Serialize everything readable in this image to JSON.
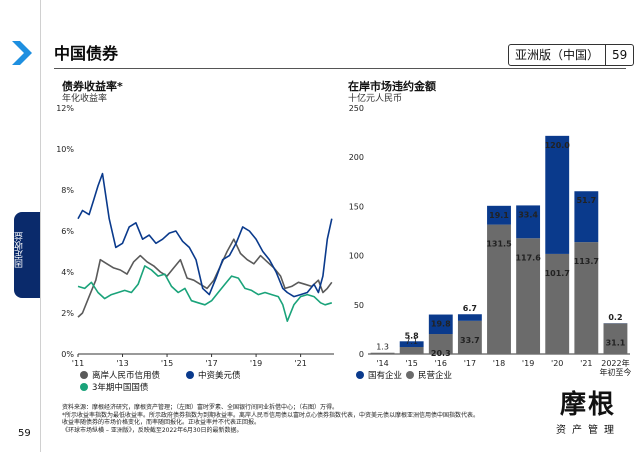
{
  "page": {
    "title": "中国债券",
    "region": "亚洲版（中国）",
    "page_number": "59",
    "side_tab": "固定收益"
  },
  "brand": {
    "name": "摩根",
    "sub": "资产管理"
  },
  "left": {
    "title": "债券收益率*",
    "subtitle": "年化收益率",
    "legend": [
      {
        "label": "离岸人民币信用债",
        "color": "#5a5a5a"
      },
      {
        "label": "中资美元债",
        "color": "#0a3a8c"
      },
      {
        "label": "3年期中国国债",
        "color": "#1aa37a"
      }
    ]
  },
  "right": {
    "title": "在岸市场违约金额",
    "subtitle": "十亿元人民币",
    "legend": [
      {
        "label": "国有企业",
        "color": "#0a3a8c"
      },
      {
        "label": "民营企业",
        "color": "#6b6b6b"
      }
    ]
  },
  "chart_data": [
    {
      "type": "line",
      "title": "债券收益率*",
      "ylabel": "年化收益率",
      "ylim": [
        0,
        12
      ],
      "yticks": [
        "0%",
        "2%",
        "4%",
        "6%",
        "8%",
        "10%",
        "12%"
      ],
      "xlim": [
        2011,
        2022.5
      ],
      "xticks": [
        {
          "x": 2011,
          "label": "'11"
        },
        {
          "x": 2013,
          "label": "'13"
        },
        {
          "x": 2015,
          "label": "'15"
        },
        {
          "x": 2017,
          "label": "'17"
        },
        {
          "x": 2019,
          "label": "'19"
        },
        {
          "x": 2021,
          "label": "'21"
        }
      ],
      "series": [
        {
          "name": "离岸人民币信用债",
          "x": [
            2011.0,
            2011.2,
            2011.5,
            2011.8,
            2012.0,
            2012.3,
            2012.6,
            2012.9,
            2013.2,
            2013.5,
            2013.8,
            2014.1,
            2014.4,
            2014.7,
            2015.0,
            2015.3,
            2015.6,
            2015.9,
            2016.2,
            2016.5,
            2016.8,
            2017.1,
            2017.4,
            2017.7,
            2018.0,
            2018.3,
            2018.6,
            2018.9,
            2019.2,
            2019.5,
            2019.8,
            2020.1,
            2020.3,
            2020.6,
            2020.9,
            2021.2,
            2021.5,
            2021.8,
            2022.0,
            2022.2,
            2022.4
          ],
          "values": [
            1.8,
            2.0,
            2.8,
            3.6,
            4.6,
            4.4,
            4.2,
            4.1,
            3.9,
            4.5,
            4.8,
            4.5,
            4.3,
            4.0,
            3.8,
            4.2,
            4.6,
            3.7,
            3.6,
            3.4,
            3.2,
            3.6,
            4.3,
            5.0,
            5.6,
            4.9,
            4.6,
            4.4,
            4.8,
            4.5,
            4.2,
            3.8,
            3.2,
            3.3,
            3.5,
            3.4,
            3.3,
            3.6,
            3.0,
            3.2,
            3.5
          ]
        },
        {
          "name": "中资美元债",
          "x": [
            2011.0,
            2011.2,
            2011.5,
            2011.7,
            2011.9,
            2012.1,
            2012.4,
            2012.7,
            2013.0,
            2013.3,
            2013.6,
            2013.9,
            2014.2,
            2014.5,
            2014.8,
            2015.1,
            2015.4,
            2015.7,
            2016.0,
            2016.3,
            2016.6,
            2016.9,
            2017.2,
            2017.5,
            2017.8,
            2018.1,
            2018.4,
            2018.7,
            2019.0,
            2019.3,
            2019.6,
            2019.9,
            2020.2,
            2020.4,
            2020.7,
            2021.0,
            2021.3,
            2021.6,
            2021.8,
            2022.0,
            2022.2,
            2022.4
          ],
          "values": [
            6.6,
            7.0,
            6.8,
            7.5,
            8.2,
            8.8,
            6.6,
            5.2,
            5.4,
            6.2,
            6.4,
            5.6,
            5.8,
            5.4,
            5.6,
            5.9,
            6.0,
            5.5,
            5.2,
            4.6,
            3.2,
            2.9,
            3.7,
            4.6,
            4.8,
            5.4,
            6.2,
            6.0,
            5.6,
            5.0,
            4.6,
            4.0,
            3.2,
            3.0,
            2.8,
            2.9,
            3.0,
            3.4,
            3.0,
            3.8,
            5.6,
            6.6
          ]
        },
        {
          "name": "3年期中国国债",
          "x": [
            2011.0,
            2011.3,
            2011.6,
            2011.9,
            2012.2,
            2012.5,
            2012.8,
            2013.1,
            2013.4,
            2013.7,
            2014.0,
            2014.3,
            2014.6,
            2014.9,
            2015.2,
            2015.5,
            2015.8,
            2016.1,
            2016.4,
            2016.7,
            2017.0,
            2017.3,
            2017.6,
            2017.9,
            2018.2,
            2018.5,
            2018.8,
            2019.1,
            2019.4,
            2019.7,
            2020.0,
            2020.2,
            2020.4,
            2020.7,
            2021.0,
            2021.3,
            2021.6,
            2021.9,
            2022.1,
            2022.4
          ],
          "values": [
            3.3,
            3.2,
            3.5,
            3.0,
            2.7,
            2.9,
            3.0,
            3.1,
            3.0,
            3.4,
            4.3,
            4.1,
            3.8,
            3.9,
            3.3,
            3.0,
            3.2,
            2.6,
            2.5,
            2.4,
            2.6,
            3.0,
            3.4,
            3.8,
            3.7,
            3.2,
            3.1,
            2.9,
            3.0,
            2.9,
            2.8,
            2.4,
            1.6,
            2.4,
            2.8,
            2.9,
            2.8,
            2.5,
            2.4,
            2.5
          ]
        }
      ]
    },
    {
      "type": "bar",
      "stacked": true,
      "title": "在岸市场违约金额",
      "ylabel": "十亿元人民币",
      "ylim": [
        0,
        250
      ],
      "yticks": [
        "0",
        "50",
        "100",
        "150",
        "200",
        "250"
      ],
      "categories": [
        "'14",
        "'15",
        "'16",
        "'17",
        "'18",
        "'19",
        "'20",
        "'21",
        "2022年"
      ],
      "category_sub": [
        "",
        "",
        "",
        "",
        "",
        "",
        "",
        "",
        "年初至今"
      ],
      "series": [
        {
          "name": "民营企业",
          "values": [
            1.3,
            7.1,
            20.3,
            33.7,
            131.5,
            117.6,
            101.7,
            113.7,
            31.1
          ]
        },
        {
          "name": "国有企业",
          "values": [
            0,
            5.8,
            19.8,
            6.7,
            19.1,
            33.4,
            120.0,
            51.7,
            0.2
          ]
        }
      ]
    }
  ],
  "footnote": [
    "资料来源：摩根经济研究，摩根资产管理；（左图）富时罗素、全国银行间同业拆借中心；（右图）万得。",
    "*所示收益率指数为最低收益率。所示政府债券指数为到期收益率。离岸人民币信用债以富时点心债券指数代表，中资美元债以摩根亚洲信用债中国指数代表。",
    "收益率随债券的市场价格变化，而率随回报化。正收益率并不代表正回报。",
    "《环球市场纵横 – 亚洲版》，反映截至2022年6月30日的最新数据。"
  ]
}
